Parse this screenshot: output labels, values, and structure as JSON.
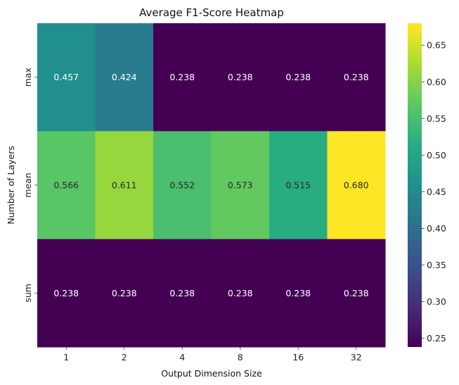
{
  "chart_data": {
    "type": "heatmap",
    "title": "Average F1-Score Heatmap",
    "xlabel": "Output Dimension Size",
    "ylabel": "Number of Layers",
    "x_categories": [
      "1",
      "2",
      "4",
      "8",
      "16",
      "32"
    ],
    "y_categories": [
      "max",
      "mean",
      "sum"
    ],
    "values": [
      [
        0.457,
        0.424,
        0.238,
        0.238,
        0.238,
        0.238
      ],
      [
        0.566,
        0.611,
        0.552,
        0.573,
        0.515,
        0.68
      ],
      [
        0.238,
        0.238,
        0.238,
        0.238,
        0.238,
        0.238
      ]
    ],
    "value_labels": [
      [
        "0.457",
        "0.424",
        "0.238",
        "0.238",
        "0.238",
        "0.238"
      ],
      [
        "0.566",
        "0.611",
        "0.552",
        "0.573",
        "0.515",
        "0.680"
      ],
      [
        "0.238",
        "0.238",
        "0.238",
        "0.238",
        "0.238",
        "0.238"
      ]
    ],
    "colormap": "viridis",
    "vmin": 0.238,
    "vmax": 0.68,
    "colorbar_ticks": [
      "0.25",
      "0.30",
      "0.35",
      "0.40",
      "0.45",
      "0.50",
      "0.55",
      "0.60",
      "0.65"
    ],
    "colorbar_tick_values": [
      0.25,
      0.3,
      0.35,
      0.4,
      0.45,
      0.5,
      0.55,
      0.6,
      0.65
    ],
    "colorbar_position": "right",
    "grid": false
  }
}
